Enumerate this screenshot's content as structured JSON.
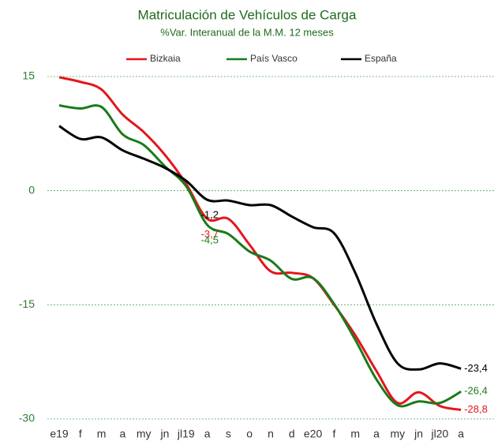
{
  "chart_data": {
    "type": "line",
    "title": "Matriculación de Vehículos de Carga",
    "subtitle": "%Var. Interanual de la M.M. 12 meses",
    "categories": [
      "e19",
      "f",
      "m",
      "a",
      "my",
      "jn",
      "jl19",
      "a",
      "s",
      "o",
      "n",
      "d",
      "e20",
      "f",
      "m",
      "a",
      "my",
      "jn",
      "jl20",
      "a"
    ],
    "series": [
      {
        "name": "Bizkaia",
        "color": "#e3161b",
        "values": [
          14.9,
          14.3,
          13.3,
          10,
          7.7,
          4.7,
          0.9,
          -3.7,
          -3.7,
          -7.1,
          -10.6,
          -10.8,
          -11.5,
          -15,
          -19,
          -23.7,
          -27.9,
          -26.5,
          -28.3,
          -28.8
        ],
        "value_labels": [
          null,
          null,
          null,
          null,
          null,
          null,
          null,
          "-3,7",
          null,
          null,
          null,
          null,
          null,
          null,
          null,
          null,
          null,
          null,
          null,
          "-28,8"
        ]
      },
      {
        "name": "País Vasco",
        "color": "#1a7a1a",
        "values": [
          11.2,
          10.8,
          11,
          7.4,
          6,
          3.2,
          0.6,
          -4.5,
          -5.7,
          -8,
          -9.2,
          -11.6,
          -11.5,
          -14.9,
          -19.6,
          -24.8,
          -28.2,
          -27.7,
          -27.9,
          -26.4
        ],
        "value_labels": [
          null,
          null,
          null,
          null,
          null,
          null,
          null,
          "-4,5",
          null,
          null,
          null,
          null,
          null,
          null,
          null,
          null,
          null,
          null,
          null,
          "-26,4"
        ]
      },
      {
        "name": "España",
        "color": "#000000",
        "values": [
          8.5,
          6.8,
          7,
          5.3,
          4.2,
          3,
          1.3,
          -1.2,
          -1.3,
          -1.9,
          -1.9,
          -3.4,
          -4.8,
          -5.6,
          -10.8,
          -17.5,
          -22.7,
          -23.5,
          -22.7,
          -23.4
        ],
        "value_labels": [
          null,
          null,
          null,
          null,
          null,
          null,
          null,
          "-1,2",
          null,
          null,
          null,
          null,
          null,
          null,
          null,
          null,
          null,
          null,
          null,
          "-23,4"
        ]
      }
    ],
    "ylim": [
      -30,
      15
    ],
    "yticks": [
      -30,
      -15,
      0,
      15
    ],
    "grid": true
  }
}
